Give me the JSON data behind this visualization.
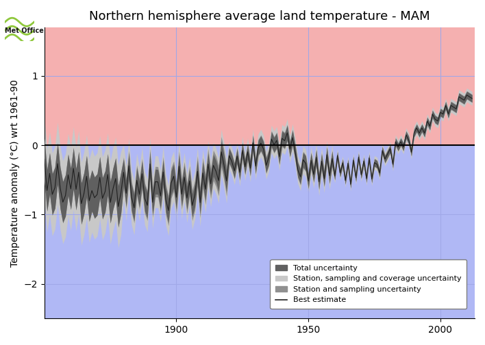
{
  "title": "Northern hemisphere average land temperature - MAM",
  "ylabel": "Temperature anomaly (°C) wrt 1961-90",
  "xlim": [
    1850,
    2013
  ],
  "ylim": [
    -2.5,
    1.7
  ],
  "yticks": [
    -2,
    -1,
    0,
    1
  ],
  "xticks": [
    1900,
    1950,
    2000
  ],
  "bg_color_warm": "#f5b0b0",
  "bg_color_cool": "#b0b8f5",
  "grid_color": "#a0a8e8",
  "legend_labels": [
    "Total uncertainty",
    "Station, sampling and coverage uncertainty",
    "Station and sampling uncertainty",
    "Best estimate"
  ],
  "color_total_unc": "#606060",
  "color_ssc_unc": "#c8c8c8",
  "color_ss_unc": "#909090",
  "color_best": "#202020",
  "title_fontsize": 13,
  "axis_fontsize": 10,
  "tick_fontsize": 10
}
